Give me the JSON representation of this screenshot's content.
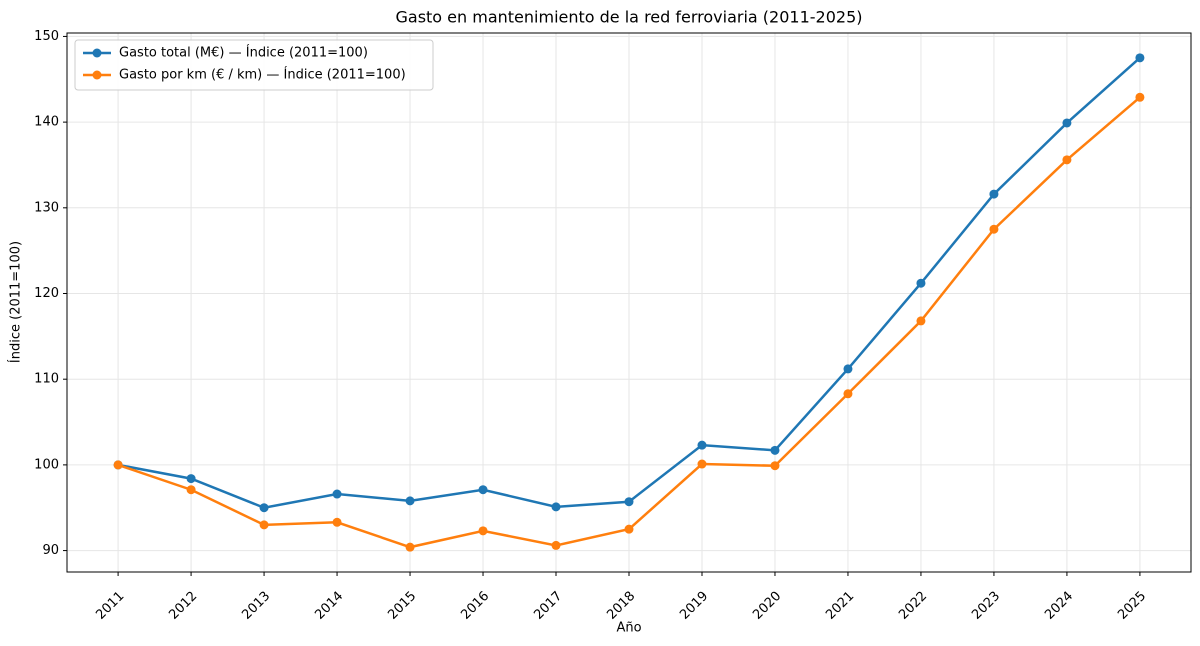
{
  "chart_data": {
    "type": "line",
    "title": "Gasto en mantenimiento de la red ferroviaria (2011-2025)",
    "xlabel": "Año",
    "ylabel": "Índice (2011=100)",
    "x": [
      2011,
      2012,
      2013,
      2014,
      2015,
      2016,
      2017,
      2018,
      2019,
      2020,
      2021,
      2022,
      2023,
      2024,
      2025
    ],
    "series": [
      {
        "name": "Gasto total (M€) — Índice (2011=100)",
        "color": "#1f77b4",
        "values": [
          100,
          98.4,
          95.0,
          96.6,
          95.8,
          97.1,
          95.1,
          95.7,
          102.3,
          101.7,
          111.2,
          121.2,
          131.6,
          139.9,
          147.5
        ]
      },
      {
        "name": "Gasto por km (€ / km) — Índice (2011=100)",
        "color": "#ff7f0e",
        "values": [
          100,
          97.1,
          93.0,
          93.3,
          90.4,
          92.3,
          90.6,
          92.5,
          100.1,
          99.9,
          108.3,
          116.8,
          127.5,
          135.6,
          142.9
        ]
      }
    ],
    "xlim": [
      2010.3,
      2025.7
    ],
    "xticks": [
      2011,
      2012,
      2013,
      2014,
      2015,
      2016,
      2017,
      2018,
      2019,
      2020,
      2021,
      2022,
      2023,
      2024,
      2025
    ],
    "ylim": [
      87.5,
      150.4
    ],
    "yticks": [
      90,
      100,
      110,
      120,
      130,
      140,
      150
    ],
    "grid": true,
    "legend": "upper left"
  }
}
